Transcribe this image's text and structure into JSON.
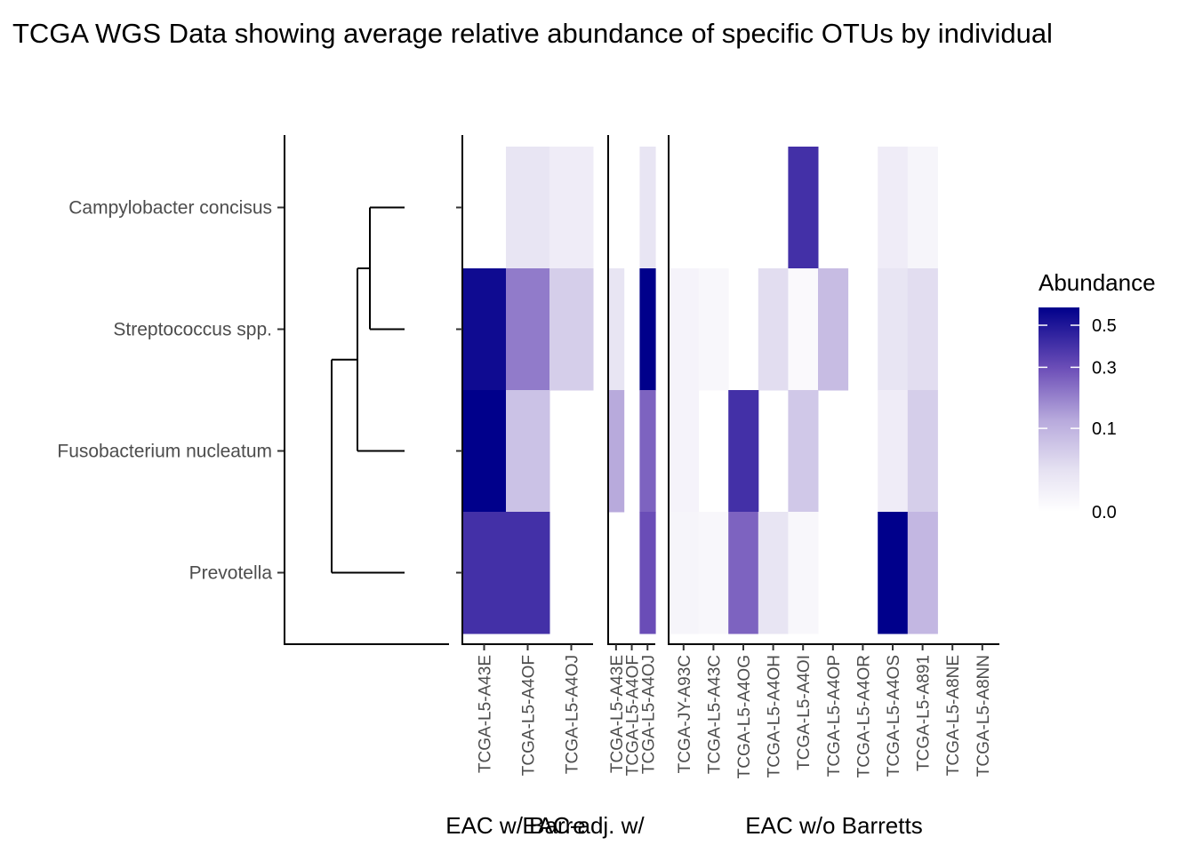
{
  "chart_data": {
    "type": "heatmap",
    "title": "TCGA WGS Data showing average relative abundance of specific OTUs by individual",
    "rows": [
      "Campylobacter concisus",
      "Streptococcus spp.",
      "Fusobacterium nucleatum",
      "Prevotella"
    ],
    "facets": [
      {
        "label": "EAC w/ Barre",
        "columns": [
          "TCGA-L5-A43E",
          "TCGA-L5-A4OF",
          "TCGA-L5-A4OJ"
        ],
        "values": [
          [
            null,
            0.02,
            0.01
          ],
          [
            0.55,
            0.2,
            0.05
          ],
          [
            0.6,
            0.07,
            null
          ],
          [
            0.4,
            0.4,
            null
          ]
        ]
      },
      {
        "label": "EAC-adj. w/",
        "columns": [
          "TCGA-L5-A43E",
          "TCGA-L5-A4OF",
          "TCGA-L5-A4OJ"
        ],
        "values": [
          [
            null,
            null,
            0.02
          ],
          [
            0.02,
            null,
            0.6
          ],
          [
            0.12,
            null,
            0.25
          ],
          [
            null,
            null,
            0.3
          ]
        ]
      },
      {
        "label": "EAC w/o Barretts",
        "columns": [
          "TCGA-JY-A93C",
          "TCGA-L5-A43C",
          "TCGA-L5-A4OG",
          "TCGA-L5-A4OH",
          "TCGA-L5-A4OI",
          "TCGA-L5-A4OP",
          "TCGA-L5-A4OR",
          "TCGA-L5-A4OS",
          "TCGA-L5-A891",
          "TCGA-L5-A8NE",
          "TCGA-L5-A8NN"
        ],
        "values": [
          [
            null,
            null,
            null,
            null,
            0.4,
            null,
            null,
            0.01,
            0.003,
            null,
            null
          ],
          [
            0.004,
            0.002,
            null,
            0.03,
            0.001,
            0.08,
            null,
            0.02,
            0.03,
            null,
            null
          ],
          [
            0.004,
            null,
            0.4,
            null,
            0.06,
            null,
            null,
            0.01,
            0.05,
            null,
            null
          ],
          [
            0.003,
            0.002,
            0.25,
            0.02,
            0.002,
            null,
            null,
            0.6,
            0.09,
            null,
            null
          ]
        ]
      }
    ],
    "legend": {
      "title": "Abundance",
      "ticks": [
        "0.5",
        "0.3",
        "0.1",
        "0.0"
      ],
      "tick_values": [
        0.5,
        0.3,
        0.1,
        0.0
      ],
      "range": [
        0,
        0.6
      ],
      "position": "right"
    },
    "colors": {
      "low": "#ffffff",
      "high": "#00008b"
    }
  }
}
